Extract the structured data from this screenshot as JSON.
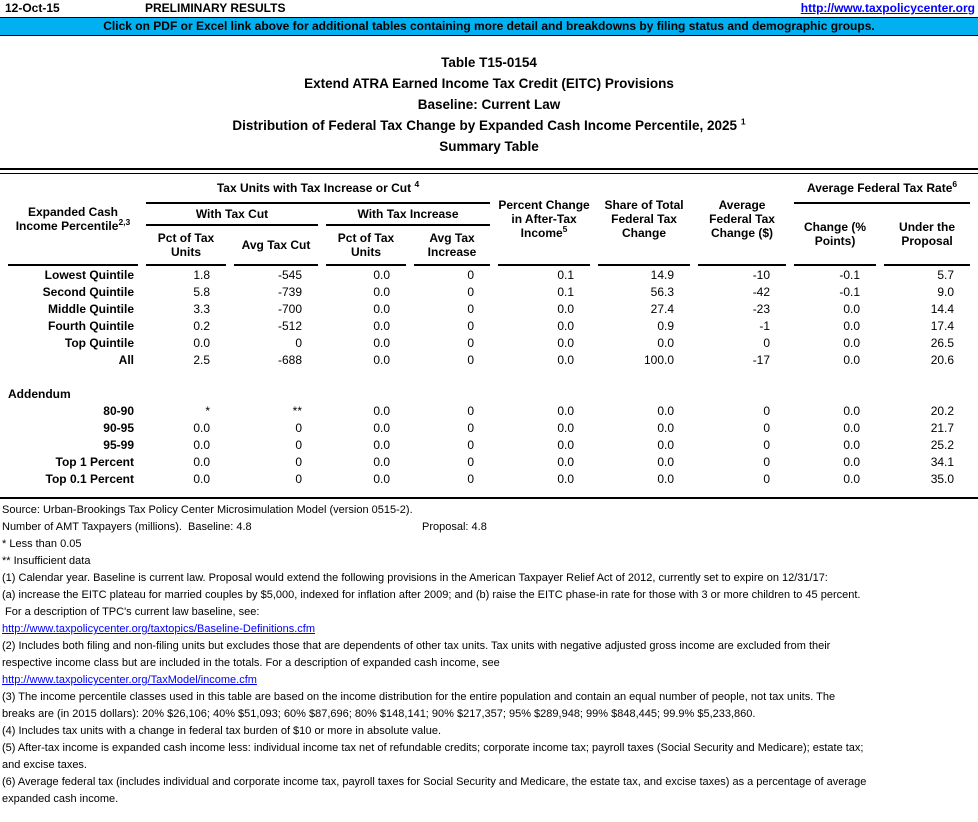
{
  "topbar": {
    "date": "12-Oct-15",
    "status": "PRELIMINARY RESULTS",
    "url": "http://www.taxpolicycenter.org"
  },
  "banner": {
    "text": "Click on PDF or Excel link above for additional tables containing more detail and breakdowns by filing status and demographic groups.",
    "bg_color": "#00B0F0"
  },
  "title": {
    "line1": "Table T15-0154",
    "line2": "Extend ATRA Earned Income Tax Credit (EITC) Provisions",
    "line3": "Baseline: Current Law",
    "line4": "Distribution of Federal Tax Change by Expanded Cash Income Percentile, 2025",
    "line4_sup": "1",
    "line5": "Summary Table"
  },
  "table": {
    "header": {
      "stub_label": "Expanded Cash Income Percentile",
      "stub_sup": "2,3",
      "group1_label": "Tax Units with Tax Increase or Cut ",
      "group1_sup": "4",
      "with_cut_label": "With Tax Cut",
      "with_increase_label": "With Tax Increase",
      "col_pct_units_cut": "Pct of Tax Units",
      "col_avg_cut": "Avg Tax Cut",
      "col_pct_units_inc": "Pct of Tax Units",
      "col_avg_inc": "Avg Tax Increase",
      "col_pct_change": "Percent Change in After-Tax Income",
      "col_pct_change_sup": "5",
      "col_share": "Share of Total Federal Tax Change",
      "col_avg_change": "Average Federal Tax Change ($)",
      "group2_label": "Average Federal Tax Rate",
      "group2_sup": "6",
      "col_rate_change": "Change (% Points)",
      "col_rate_proposal": "Under the Proposal"
    },
    "rows": [
      {
        "label": "Lowest Quintile",
        "values": [
          "1.8",
          "-545",
          "0.0",
          "0",
          "0.1",
          "14.9",
          "-10",
          "-0.1",
          "5.7"
        ]
      },
      {
        "label": "Second Quintile",
        "values": [
          "5.8",
          "-739",
          "0.0",
          "0",
          "0.1",
          "56.3",
          "-42",
          "-0.1",
          "9.0"
        ]
      },
      {
        "label": "Middle Quintile",
        "values": [
          "3.3",
          "-700",
          "0.0",
          "0",
          "0.0",
          "27.4",
          "-23",
          "0.0",
          "14.4"
        ]
      },
      {
        "label": "Fourth Quintile",
        "values": [
          "0.2",
          "-512",
          "0.0",
          "0",
          "0.0",
          "0.9",
          "-1",
          "0.0",
          "17.4"
        ]
      },
      {
        "label": "Top Quintile",
        "values": [
          "0.0",
          "0",
          "0.0",
          "0",
          "0.0",
          "0.0",
          "0",
          "0.0",
          "26.5"
        ]
      },
      {
        "label": "All",
        "values": [
          "2.5",
          "-688",
          "0.0",
          "0",
          "0.0",
          "100.0",
          "-17",
          "0.0",
          "20.6"
        ]
      }
    ],
    "addendum_label": "Addendum",
    "addendum_rows": [
      {
        "label": "80-90",
        "values": [
          "*",
          "**",
          "0.0",
          "0",
          "0.0",
          "0.0",
          "0",
          "0.0",
          "20.2"
        ]
      },
      {
        "label": "90-95",
        "values": [
          "0.0",
          "0",
          "0.0",
          "0",
          "0.0",
          "0.0",
          "0",
          "0.0",
          "21.7"
        ]
      },
      {
        "label": "95-99",
        "values": [
          "0.0",
          "0",
          "0.0",
          "0",
          "0.0",
          "0.0",
          "0",
          "0.0",
          "25.2"
        ]
      },
      {
        "label": "Top 1 Percent",
        "values": [
          "0.0",
          "0",
          "0.0",
          "0",
          "0.0",
          "0.0",
          "0",
          "0.0",
          "34.1"
        ]
      },
      {
        "label": "Top 0.1 Percent",
        "values": [
          "0.0",
          "0",
          "0.0",
          "0",
          "0.0",
          "0.0",
          "0",
          "0.0",
          "35.0"
        ]
      }
    ]
  },
  "notes": [
    {
      "type": "text",
      "text": "Source: Urban-Brookings Tax Policy Center Microsimulation Model (version 0515-2)."
    },
    {
      "type": "two_part",
      "left": "Number of AMT Taxpayers (millions).  Baseline: 4.8",
      "right": "Proposal: 4.8"
    },
    {
      "type": "text",
      "text": "* Less than 0.05"
    },
    {
      "type": "text",
      "text": "** Insufficient data"
    },
    {
      "type": "text",
      "text": "(1) Calendar year. Baseline is current law. Proposal would extend the following provisions in the American Taxpayer Relief Act of 2012, currently set to expire on 12/31/17:"
    },
    {
      "type": "text",
      "text": "(a) increase the EITC plateau for married couples by $5,000, indexed for inflation after 2009; and (b) raise the EITC phase-in rate for those with 3 or more children to 45 percent."
    },
    {
      "type": "text",
      "text": " For a description of TPC's current law baseline, see:"
    },
    {
      "type": "link",
      "text": "http://www.taxpolicycenter.org/taxtopics/Baseline-Definitions.cfm"
    },
    {
      "type": "text",
      "text": "(2) Includes both filing and non-filing units but excludes those that are dependents of other tax units. Tax units with negative adjusted gross income are excluded from their"
    },
    {
      "type": "text",
      "text": "respective income class but are included in the totals. For a description of expanded cash income, see"
    },
    {
      "type": "link",
      "text": "http://www.taxpolicycenter.org/TaxModel/income.cfm"
    },
    {
      "type": "text",
      "text": "(3) The income percentile classes used in this table are based on the income distribution for the entire population and contain an equal number of people, not tax units. The"
    },
    {
      "type": "text",
      "text": "breaks are (in 2015 dollars): 20% $26,106; 40% $51,093; 60% $87,696; 80% $148,141; 90% $217,357; 95% $289,948; 99% $848,445; 99.9% $5,233,860."
    },
    {
      "type": "text",
      "text": "(4) Includes tax units with a change in federal tax burden of $10 or more in absolute value."
    },
    {
      "type": "text",
      "text": "(5) After-tax income is expanded cash income less: individual income tax net of refundable credits; corporate income tax; payroll taxes (Social Security and Medicare); estate tax;"
    },
    {
      "type": "text",
      "text": "and excise taxes."
    },
    {
      "type": "text",
      "text": "(6) Average federal tax (includes individual and corporate income tax, payroll taxes for Social Security and Medicare, the estate tax, and excise taxes) as a percentage of average"
    },
    {
      "type": "text",
      "text": "expanded cash income."
    }
  ]
}
